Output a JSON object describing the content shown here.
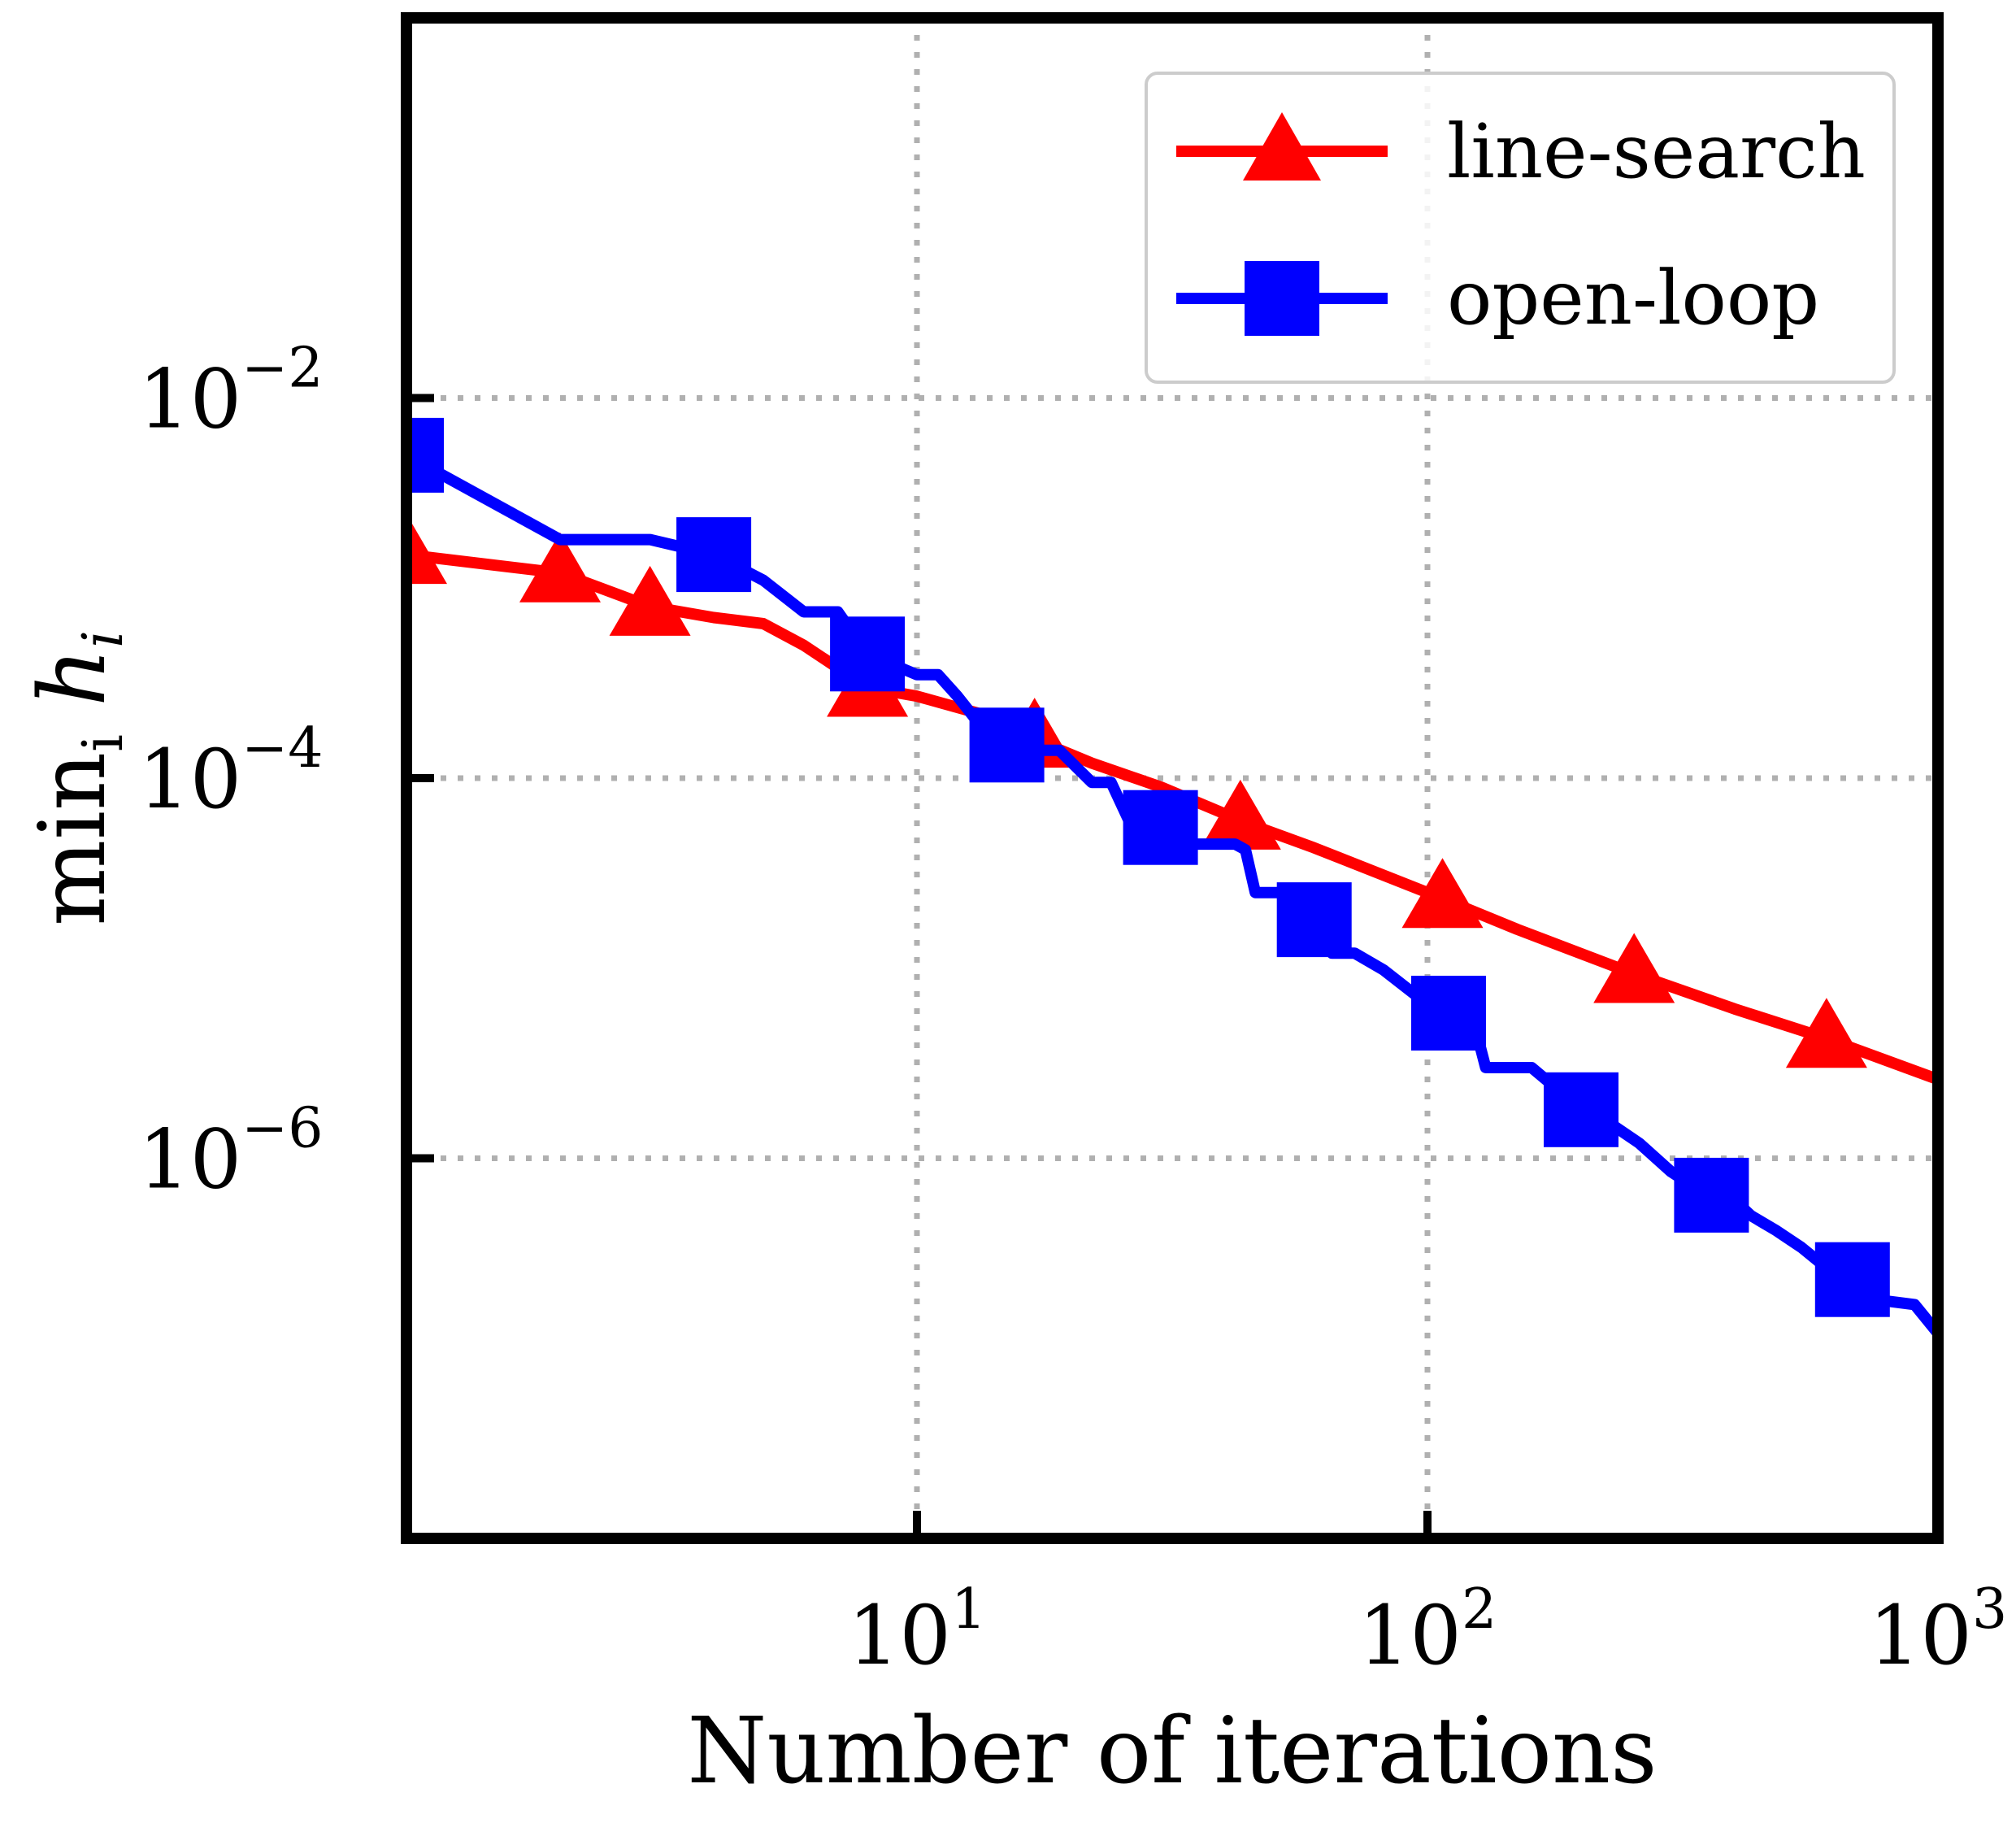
{
  "chart_data": {
    "type": "line",
    "xscale": "log",
    "yscale": "log",
    "xlabel": "Number of iterations",
    "ylabel_base": "min",
    "ylabel_sub": "i",
    "ylabel_var": "h",
    "ylabel_var_sub": "i",
    "xlim": [
      1,
      1000
    ],
    "ylim": [
      1e-08,
      1
    ],
    "grid": true,
    "legend_position": "upper right",
    "x_ticks": [
      {
        "base": "10",
        "exp": "1",
        "value": 10
      },
      {
        "base": "10",
        "exp": "2",
        "value": 100
      },
      {
        "base": "10",
        "exp": "3",
        "value": 1000
      }
    ],
    "y_ticks": [
      {
        "base": "10",
        "exp": "−2",
        "value": 0.01
      },
      {
        "base": "10",
        "exp": "−4",
        "value": 0.0001
      },
      {
        "base": "10",
        "exp": "−6",
        "value": 1e-06
      }
    ],
    "series": [
      {
        "name": "line-search",
        "color": "#ff0000",
        "marker": "triangle",
        "x": [
          1,
          2,
          3,
          4,
          5,
          6,
          8,
          10,
          14,
          18,
          22,
          30,
          45,
          60,
          100,
          150,
          250,
          400,
          600,
          1000
        ],
        "y": [
          0.0015,
          0.0012,
          0.0008,
          0.0007,
          0.00065,
          0.0005,
          0.0003,
          0.00027,
          0.00021,
          0.00015,
          0.00012,
          9e-05,
          5.7e-05,
          4.3e-05,
          2.5e-05,
          1.6e-05,
          9.5e-06,
          6.1e-06,
          4.3e-06,
          2.6e-06
        ],
        "marker_x": [
          1,
          2,
          3,
          8,
          17,
          43,
          107,
          254,
          605
        ]
      },
      {
        "name": "open-loop",
        "color": "#0000ff",
        "marker": "square",
        "x": [
          1,
          2,
          3,
          4,
          5,
          6,
          7,
          8,
          10,
          11,
          12,
          14,
          16,
          19,
          22,
          24,
          26,
          30,
          35,
          42,
          44,
          46,
          52,
          60,
          65,
          72,
          82,
          95,
          110,
          125,
          130,
          160,
          180,
          200,
          230,
          260,
          300,
          350,
          400,
          430,
          480,
          540,
          600,
          680,
          760,
          900,
          1000
        ],
        "y": [
          0.005,
          0.0018,
          0.0018,
          0.0015,
          0.0011,
          0.00075,
          0.00075,
          0.00045,
          0.00035,
          0.00035,
          0.00027,
          0.00016,
          0.00014,
          0.00014,
          9.5e-05,
          9.5e-05,
          6e-05,
          5.5e-05,
          4.5e-05,
          4.5e-05,
          4.2e-05,
          2.5e-05,
          2.5e-05,
          1.8e-05,
          1.2e-05,
          1.2e-05,
          9.8e-06,
          7.2e-06,
          5.8e-06,
          4.5e-06,
          3e-06,
          3e-06,
          2.3e-06,
          1.8e-06,
          1.5e-06,
          1.2e-06,
          8.5e-07,
          6.5e-07,
          6e-07,
          5e-07,
          4.2e-07,
          3.4e-07,
          2.7e-07,
          2.3e-07,
          1.8e-07,
          1.7e-07,
          1.2e-07
        ],
        "marker_x": [
          1,
          4,
          8,
          15,
          30,
          60,
          110,
          200,
          360,
          680
        ]
      }
    ]
  }
}
